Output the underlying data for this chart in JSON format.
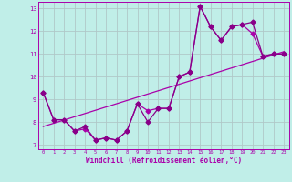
{
  "xlabel": "Windchill (Refroidissement éolien,°C)",
  "background_color": "#c0eee8",
  "grid_color": "#b0c8c8",
  "line_color": "#aa00aa",
  "line_color2": "#880088",
  "xlim": [
    -0.5,
    23.5
  ],
  "ylim": [
    6.8,
    13.3
  ],
  "yticks": [
    7,
    8,
    9,
    10,
    11,
    12,
    13
  ],
  "xticks": [
    0,
    1,
    2,
    3,
    4,
    5,
    6,
    7,
    8,
    9,
    10,
    11,
    12,
    13,
    14,
    15,
    16,
    17,
    18,
    19,
    20,
    21,
    22,
    23
  ],
  "series1_x": [
    0,
    1,
    2,
    3,
    4,
    5,
    6,
    7,
    8,
    9,
    10,
    11,
    12,
    13,
    14,
    15,
    16,
    17,
    18,
    19,
    20,
    21,
    22,
    23
  ],
  "series1_y": [
    9.3,
    8.1,
    8.1,
    7.6,
    7.7,
    7.2,
    7.3,
    7.2,
    7.6,
    8.8,
    8.5,
    8.6,
    8.6,
    10.0,
    10.2,
    13.1,
    12.2,
    11.6,
    12.2,
    12.3,
    11.9,
    10.9,
    11.0,
    11.0
  ],
  "series2_x": [
    0,
    1,
    2,
    3,
    4,
    5,
    6,
    7,
    8,
    9,
    10,
    11,
    12,
    13,
    14,
    15,
    16,
    17,
    18,
    19,
    20,
    21,
    22,
    23
  ],
  "series2_y": [
    9.3,
    8.1,
    8.1,
    7.6,
    7.8,
    7.2,
    7.3,
    7.2,
    7.6,
    8.8,
    8.0,
    8.6,
    8.6,
    10.0,
    10.2,
    13.1,
    12.2,
    11.6,
    12.2,
    12.3,
    12.4,
    10.9,
    11.0,
    11.0
  ],
  "trend_x": [
    0,
    23
  ],
  "trend_y": [
    7.8,
    11.1
  ],
  "markersize": 2.5,
  "linewidth": 0.9,
  "marker": "D"
}
